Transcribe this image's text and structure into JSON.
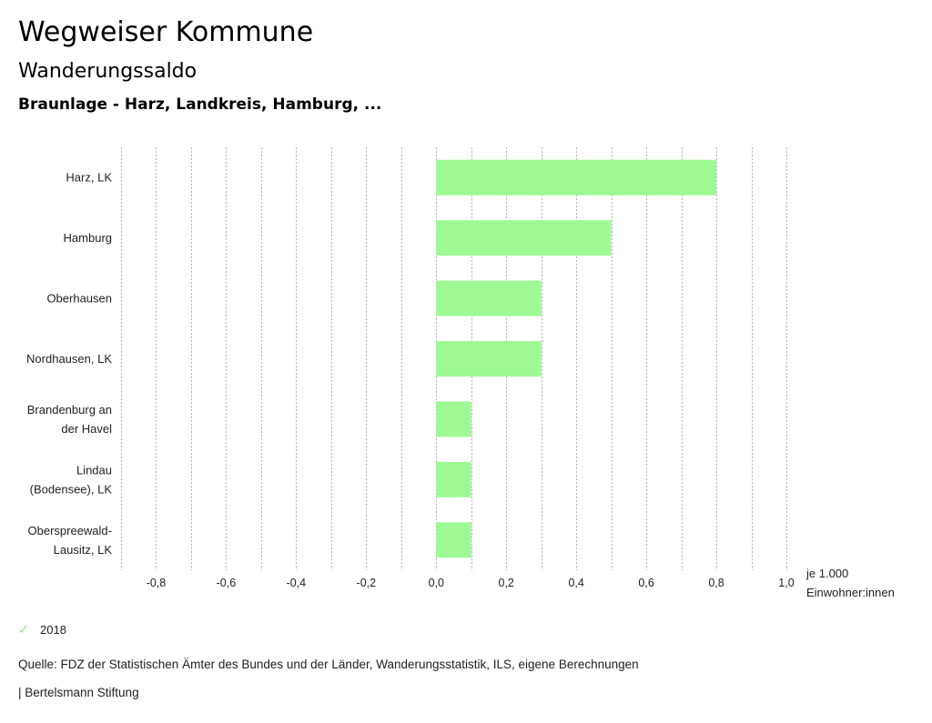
{
  "header": {
    "title": "Wegweiser Kommune",
    "subtitle": "Wanderungssaldo",
    "region": "Braunlage - Harz, Landkreis, Hamburg, ..."
  },
  "chart_data": {
    "type": "bar",
    "orientation": "horizontal",
    "title": "Wanderungssaldo",
    "categories": [
      [
        "Harz, LK"
      ],
      [
        "Hamburg"
      ],
      [
        "Oberhausen"
      ],
      [
        "Nordhausen, LK"
      ],
      [
        "Brandenburg an",
        "der Havel"
      ],
      [
        "Lindau",
        "(Bodensee), LK"
      ],
      [
        "Oberspreewald-",
        "Lausitz, LK"
      ]
    ],
    "series": [
      {
        "name": "2018",
        "color": "#9ef994",
        "values": [
          0.8,
          0.5,
          0.3,
          0.3,
          0.1,
          0.1,
          0.1
        ]
      }
    ],
    "xlim": [
      -0.9,
      1.0
    ],
    "grid_step": 0.1,
    "ticks": [
      -0.8,
      -0.6,
      -0.4,
      -0.2,
      0.0,
      0.2,
      0.4,
      0.6,
      0.8,
      1.0
    ],
    "tick_labels": [
      "-0,8",
      "-0,6",
      "-0,4",
      "-0,2",
      "0,0",
      "0,2",
      "0,4",
      "0,6",
      "0,8",
      "1,0"
    ],
    "xlabel": [
      "je 1.000",
      "Einwohner:innen"
    ],
    "ylabel": "",
    "grid": true,
    "legend_position": "bottom-left"
  },
  "legend": {
    "items": [
      {
        "label": "2018",
        "icon": "check-icon",
        "color": "#8ee68e"
      }
    ]
  },
  "footer": {
    "source": "Quelle: FDZ der Statistischen Ämter des Bundes und der Länder, Wanderungsstatistik, ILS, eigene Berechnungen",
    "publisher": "| Bertelsmann Stiftung"
  }
}
